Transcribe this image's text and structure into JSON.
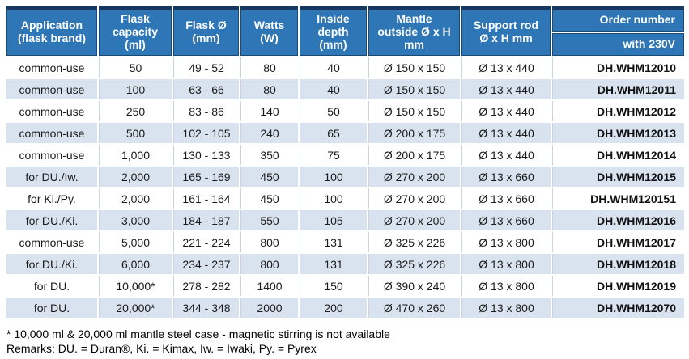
{
  "colors": {
    "header_bg": "#2E76B6",
    "header_border": "#1A4971",
    "header_top_strip": "#17375E",
    "stripe_bg": "#D9E3F0",
    "separator": "#C7D3E3",
    "text": "#1A1A1A"
  },
  "table": {
    "col_names": [
      "application",
      "flask-capacity",
      "flask-diameter",
      "watts",
      "inside-depth",
      "mantle-outside",
      "support-rod",
      "order-number"
    ],
    "headers": [
      "Application (flask brand)",
      "Flask capacity (ml)",
      "Flask Ø (mm)",
      "Watts (W)",
      "Inside depth (mm)",
      "Mantle outside Ø x H mm",
      "Support rod Ø x H mm"
    ],
    "order_header": {
      "title": "Order number",
      "subtitle": "with 230V"
    },
    "rows": [
      [
        "common-use",
        "50",
        "49 - 52",
        "80",
        "40",
        "Ø 150 x 150",
        "Ø 13 x 440",
        "DH.WHM12010"
      ],
      [
        "common-use",
        "100",
        "63 - 66",
        "80",
        "40",
        "Ø 150 x 150",
        "Ø 13 x 440",
        "DH.WHM12011"
      ],
      [
        "common-use",
        "250",
        "83 - 86",
        "140",
        "50",
        "Ø 150 x 150",
        "Ø 13 x 440",
        "DH.WHM12012"
      ],
      [
        "common-use",
        "500",
        "102 - 105",
        "240",
        "65",
        "Ø 200 x 175",
        "Ø 13 x 440",
        "DH.WHM12013"
      ],
      [
        "common-use",
        "1,000",
        "130 - 133",
        "350",
        "75",
        "Ø 200 x 175",
        "Ø 13 x 440",
        "DH.WHM12014"
      ],
      [
        "for DU./Iw.",
        "2,000",
        "165 - 169",
        "450",
        "100",
        "Ø 270 x 200",
        "Ø 13 x 660",
        "DH.WHM12015"
      ],
      [
        "for Ki./Py.",
        "2,000",
        "161 - 164",
        "450",
        "100",
        "Ø 270 x 200",
        "Ø 13 x 660",
        "DH.WHM120151"
      ],
      [
        "for DU./Ki.",
        "3,000",
        "184 - 187",
        "550",
        "105",
        "Ø 270 x 200",
        "Ø 13 x 660",
        "DH.WHM12016"
      ],
      [
        "common-use",
        "5,000",
        "221 - 224",
        "800",
        "131",
        "Ø 325 x 226",
        "Ø 13 x 800",
        "DH.WHM12017"
      ],
      [
        "for DU./Ki.",
        "6,000",
        "234 - 237",
        "800",
        "131",
        "Ø 325 x 226",
        "Ø 13 x 800",
        "DH.WHM12018"
      ],
      [
        "for DU.",
        "10,000*",
        "278 - 282",
        "1400",
        "150",
        "Ø 390 x 240",
        "Ø 13 x 800",
        "DH.WHM12019"
      ],
      [
        "for DU.",
        "20,000*",
        "344 - 348",
        "2000",
        "200",
        "Ø 470 x 260",
        "Ø 13 x 800",
        "DH.WHM12070"
      ]
    ]
  },
  "footnotes": {
    "line1": "* 10,000 ml & 20,000 ml mantle steel case - magnetic stirring is not available",
    "line2": "Remarks: DU. = Duran®, Ki. = Kimax, Iw. = Iwaki, Py. = Pyrex"
  }
}
